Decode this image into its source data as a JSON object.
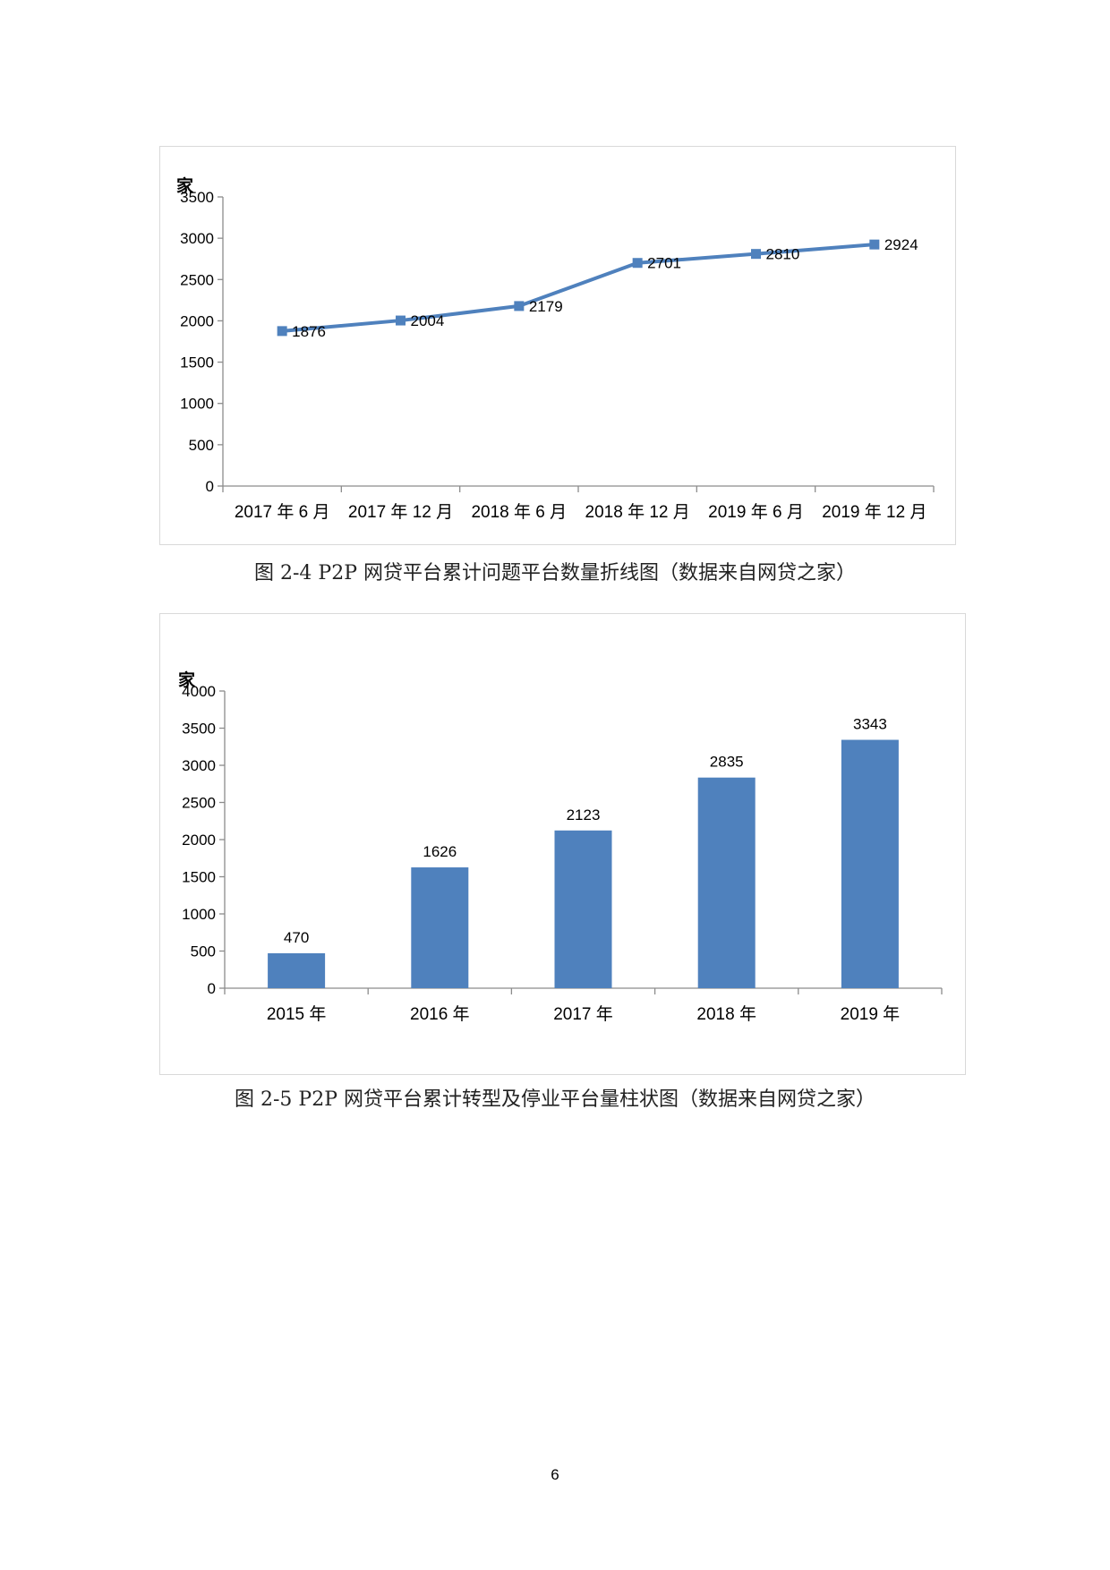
{
  "page": {
    "number": "6"
  },
  "captions": [
    "图 2-4 P2P 网贷平台累计问题平台数量折线图（数据来自网贷之家）",
    "图 2-5 P2P 网贷平台累计转型及停业平台量柱状图（数据来自网贷之家）"
  ],
  "chart_data": [
    {
      "type": "line",
      "title": "",
      "ylabel": "家",
      "categories": [
        "2017 年 6 月",
        "2017 年 12 月",
        "2018 年 6 月",
        "2018 年 12 月",
        "2019 年 6 月",
        "2019 年 12 月"
      ],
      "values": [
        1876,
        2004,
        2179,
        2701,
        2810,
        2924
      ],
      "ylim": [
        0,
        3500
      ],
      "yticks": [
        0,
        500,
        1000,
        1500,
        2000,
        2500,
        3000,
        3500
      ],
      "color": "#4f81bd",
      "grid": false
    },
    {
      "type": "bar",
      "title": "",
      "ylabel": "家",
      "categories": [
        "2015 年",
        "2016 年",
        "2017 年",
        "2018 年",
        "2019 年"
      ],
      "values": [
        470,
        1626,
        2123,
        2835,
        3343
      ],
      "ylim": [
        0,
        4000
      ],
      "yticks": [
        0,
        500,
        1000,
        1500,
        2000,
        2500,
        3000,
        3500,
        4000
      ],
      "color": "#4f81bd",
      "grid": false
    }
  ]
}
